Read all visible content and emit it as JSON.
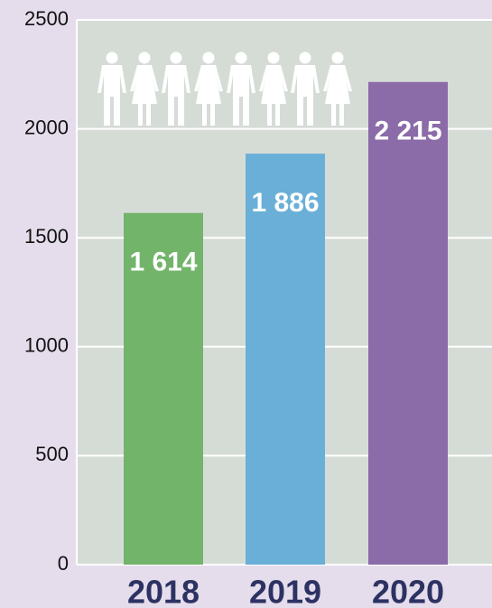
{
  "chart_data": {
    "type": "bar",
    "categories": [
      "2018",
      "2019",
      "2020"
    ],
    "values": [
      1614,
      1886,
      2215
    ],
    "value_labels": [
      "1 614",
      "1 886",
      "2 215"
    ],
    "colors": [
      "#72b46a",
      "#6aafd8",
      "#8b6ba8"
    ],
    "ylim": [
      0,
      2500
    ],
    "yticks": [
      0,
      500,
      1000,
      1500,
      2000,
      2500
    ],
    "grid": true
  }
}
